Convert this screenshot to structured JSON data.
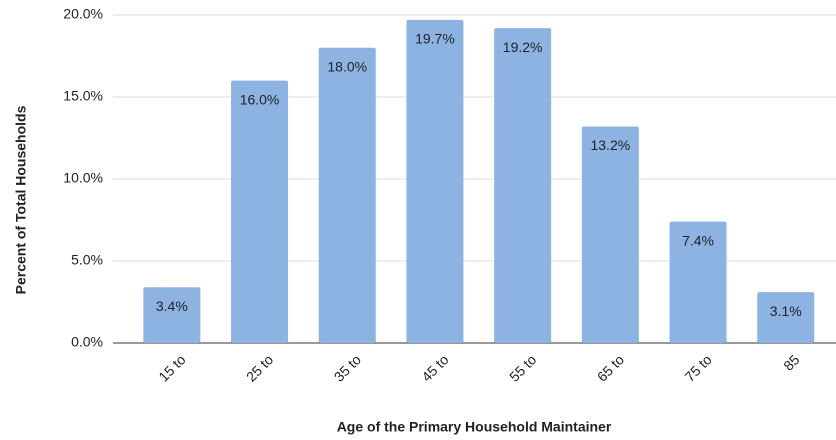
{
  "chart_data": {
    "type": "bar",
    "x_label": "Age of the Primary Household Maintainer",
    "y_label": "Percent of Total Households",
    "categories": [
      "15 to",
      "25 to",
      "35 to",
      "45 to",
      "55 to",
      "65 to",
      "75 to",
      "85"
    ],
    "values": [
      3.4,
      16.0,
      18.0,
      19.7,
      19.2,
      13.2,
      7.4,
      3.1
    ],
    "value_labels": [
      "3.4%",
      "16.0%",
      "18.0%",
      "19.7%",
      "19.2%",
      "13.2%",
      "7.4%",
      "3.1%"
    ],
    "color": "#8db3e2",
    "ylim": [
      0,
      20
    ],
    "yticks": [
      {
        "value": 0,
        "label": "0.0%"
      },
      {
        "value": 5,
        "label": "5.0%"
      },
      {
        "value": 10,
        "label": "10.0%"
      },
      {
        "value": 15,
        "label": "15.0%"
      },
      {
        "value": 20,
        "label": "20.0%"
      }
    ],
    "grid": true
  }
}
